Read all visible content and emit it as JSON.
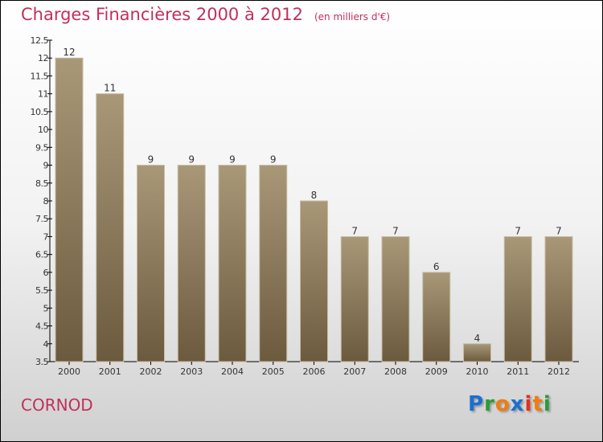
{
  "chart_data": {
    "type": "bar",
    "title": "Charges Financières 2000 à 2012",
    "unit": "(en milliers d'€)",
    "categories": [
      "2000",
      "2001",
      "2002",
      "2003",
      "2004",
      "2005",
      "2006",
      "2007",
      "2008",
      "2009",
      "2010",
      "2011",
      "2012"
    ],
    "values": [
      12,
      11,
      9,
      9,
      9,
      9,
      8,
      7,
      7,
      6,
      4,
      7,
      7
    ],
    "ylim": [
      3.5,
      12.5
    ],
    "yticks": [
      "3.5",
      "4",
      "4.5",
      "5",
      "5.5",
      "6",
      "6.5",
      "7",
      "7.5",
      "8",
      "8.5",
      "9",
      "9.5",
      "10",
      "10.5",
      "11",
      "11.5",
      "12",
      "12.5"
    ],
    "xlabel": "",
    "ylabel": "",
    "grid": false
  },
  "commune": "CORNOD",
  "logo": {
    "letters": [
      "P",
      "r",
      "o",
      "x",
      "i",
      "t",
      "i"
    ],
    "colors": [
      "#1a6fd0",
      "#2a9a3a",
      "#f07c10",
      "#1a6fd0",
      "#e03020",
      "#f07c10",
      "#2a9a3a"
    ]
  }
}
